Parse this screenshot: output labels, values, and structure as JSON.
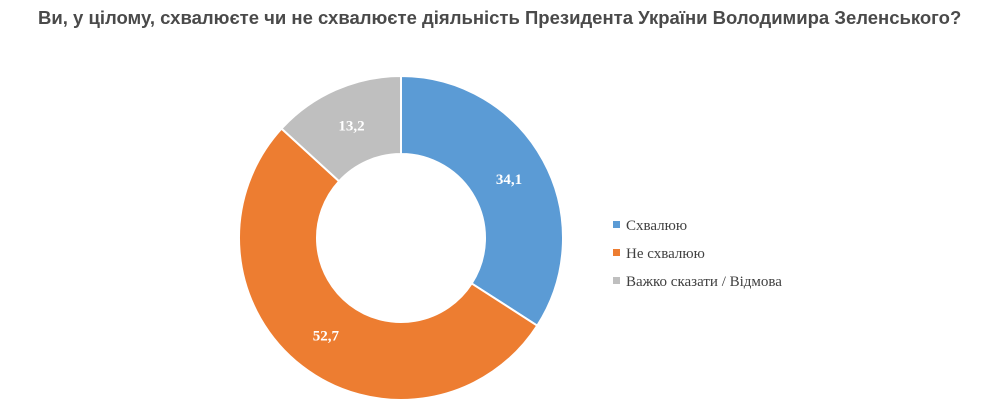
{
  "question": "Ви, у цілому, схвалюєте чи не схвалюєте діяльність Президента України Володимира Зеленського?",
  "chart_data": {
    "type": "pie",
    "subtype": "donut",
    "title": "Ви, у цілому, схвалюєте чи не схвалюєте діяльність Президента України Володимира Зеленського?",
    "categories": [
      "Схвалюю",
      "Не схвалюю",
      "Важко сказати / Відмова"
    ],
    "values": [
      34.1,
      52.7,
      13.2
    ],
    "value_labels": [
      "34,1",
      "52,7",
      "13,2"
    ],
    "colors": [
      "#5b9bd5",
      "#ed7d31",
      "#bfbfbf"
    ],
    "legend": "right",
    "start_angle": "12 o'clock, clockwise"
  }
}
